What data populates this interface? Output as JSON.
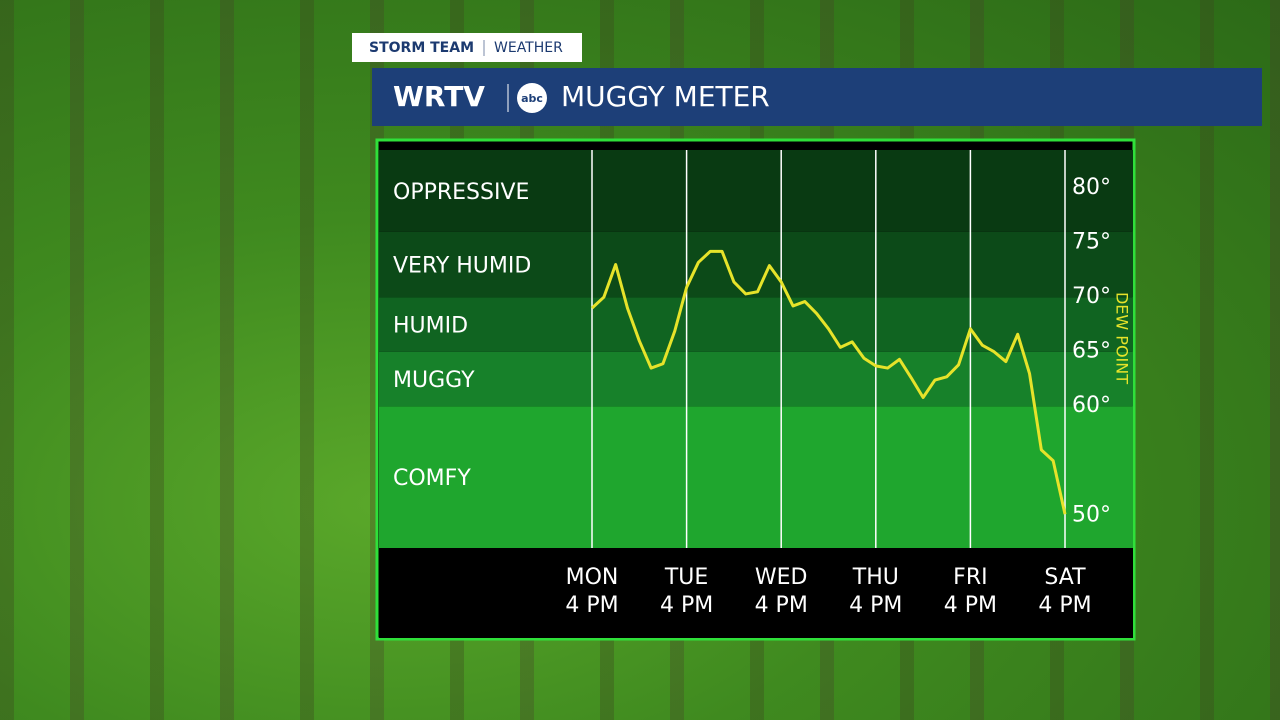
{
  "header": {
    "tag": "STORM TEAM",
    "tag_sub": "WEATHER",
    "brand": "WRTV",
    "logo": "abc"
  },
  "chart_data": {
    "type": "line",
    "title": "MUGGY METER",
    "y_label": "DEW POINT",
    "categories": [
      [
        "MON",
        "4 PM"
      ],
      null,
      null,
      null,
      null,
      null,
      null,
      null,
      [
        "TUE",
        "4 PM"
      ],
      null,
      null,
      null,
      null,
      null,
      null,
      null,
      [
        "WED",
        "4 PM"
      ],
      null,
      null,
      null,
      null,
      null,
      null,
      null,
      [
        "THU",
        "4 PM"
      ],
      null,
      null,
      null,
      null,
      null,
      null,
      null,
      [
        "FRI",
        "4 PM"
      ],
      null,
      null,
      null,
      null,
      null,
      null,
      null,
      [
        "SAT",
        "4 PM"
      ]
    ],
    "series": [
      {
        "name": "DEW POINT",
        "color": "#e6e32a",
        "values": [
          69.0,
          70.0,
          73.0,
          69.0,
          66.0,
          63.5,
          63.9,
          66.9,
          70.9,
          73.2,
          74.2,
          74.2,
          71.4,
          70.3,
          70.5,
          72.9,
          71.4,
          69.2,
          69.6,
          68.5,
          67.1,
          65.4,
          65.9,
          64.4,
          63.7,
          63.5,
          64.3,
          62.6,
          60.8,
          62.4,
          62.7,
          63.8,
          67.1,
          65.6,
          65.0,
          64.1,
          66.6,
          63.0,
          56.0,
          55.0,
          50.1
        ]
      }
    ],
    "ylim": [
      47,
      83.5
    ],
    "yticks": [
      {
        "value": 50,
        "label": "50°"
      },
      {
        "value": 60,
        "label": "60°"
      },
      {
        "value": 65,
        "label": "65°"
      },
      {
        "value": 70,
        "label": "70°"
      },
      {
        "value": 75,
        "label": "75°"
      },
      {
        "value": 80,
        "label": "80°"
      }
    ],
    "bands": [
      {
        "label": "COMFY",
        "from": 47,
        "to": 60,
        "color": "#1fa62e"
      },
      {
        "label": "MUGGY",
        "from": 60,
        "to": 65,
        "color": "#17812a"
      },
      {
        "label": "HUMID",
        "from": 65,
        "to": 70,
        "color": "#106421"
      },
      {
        "label": "VERY HUMID",
        "from": 70,
        "to": 76,
        "color": "#0c4a18"
      },
      {
        "label": "OPPRESSIVE",
        "from": 76,
        "to": 83.5,
        "color": "#093a12"
      }
    ],
    "grid": true
  }
}
